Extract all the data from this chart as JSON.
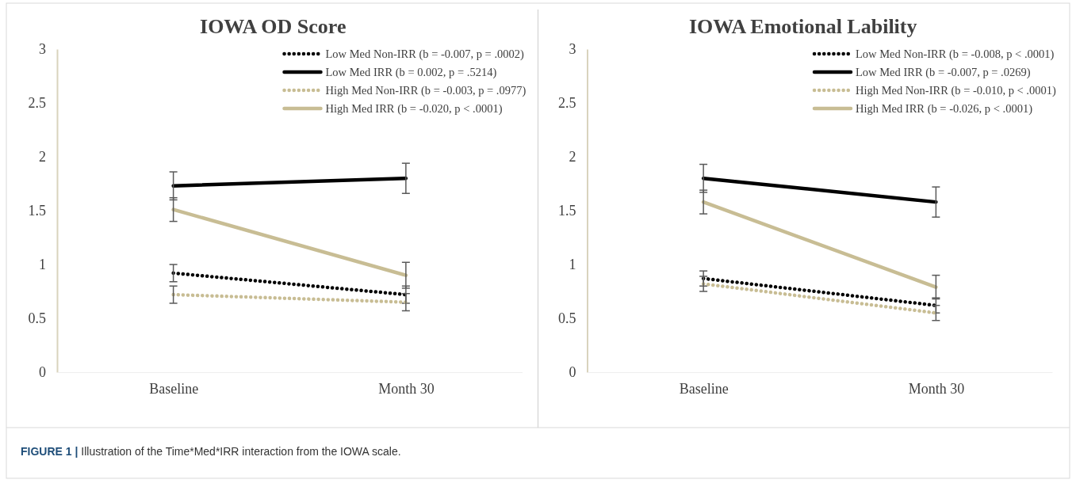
{
  "chart_data": [
    {
      "type": "line",
      "title": "IOWA OD Score",
      "categories": [
        "Baseline",
        "Month 30"
      ],
      "ylim": [
        0,
        3
      ],
      "yticks": [
        0,
        0.5,
        1,
        1.5,
        2,
        2.5,
        3
      ],
      "grid": false,
      "legend": "top right",
      "marker": "none",
      "series": [
        {
          "name": "Low Med Non-IRR (b = -0.007, p = .0002)",
          "color": "#000000",
          "line_style": "dotted",
          "values": [
            0.92,
            0.72
          ],
          "errors": [
            0.08,
            0.08
          ]
        },
        {
          "name": "Low Med IRR (b = 0.002, p = .5214)",
          "color": "#000000",
          "line_style": "solid",
          "values": [
            1.73,
            1.8
          ],
          "errors": [
            0.13,
            0.14
          ]
        },
        {
          "name": "High Med Non-IRR (b = -0.003, p = .0977)",
          "color": "#c8bd94",
          "line_style": "dotted",
          "values": [
            0.72,
            0.65
          ],
          "errors": [
            0.08,
            0.08
          ]
        },
        {
          "name": "High Med IRR (b = -0.020, p < .0001)",
          "color": "#c8bd94",
          "line_style": "solid",
          "values": [
            1.51,
            0.9
          ],
          "errors": [
            0.11,
            0.12
          ]
        }
      ],
      "annotations": [
        "FIGURE 1 | Illustration of the Time*Med*IRR interaction from the IOWA scale."
      ]
    },
    {
      "type": "line",
      "title": "IOWA Emotional Lability",
      "categories": [
        "Baseline",
        "Month 30"
      ],
      "ylim": [
        0,
        3
      ],
      "yticks": [
        0,
        0.5,
        1,
        1.5,
        2,
        2.5,
        3
      ],
      "grid": false,
      "legend": "top right",
      "marker": "none",
      "series": [
        {
          "name": "Low Med Non-IRR (b = -0.008, p < .0001)",
          "color": "#000000",
          "line_style": "dotted",
          "values": [
            0.87,
            0.62
          ],
          "errors": [
            0.07,
            0.07
          ]
        },
        {
          "name": "Low Med IRR (b = -0.007, p = .0269)",
          "color": "#000000",
          "line_style": "solid",
          "values": [
            1.8,
            1.58
          ],
          "errors": [
            0.13,
            0.14
          ]
        },
        {
          "name": "High Med Non-IRR (b = -0.010, p < .0001)",
          "color": "#c8bd94",
          "line_style": "dotted",
          "values": [
            0.82,
            0.55
          ],
          "errors": [
            0.07,
            0.07
          ]
        },
        {
          "name": "High Med IRR (b = -0.026, p < .0001)",
          "color": "#c8bd94",
          "line_style": "solid",
          "values": [
            1.58,
            0.79
          ],
          "errors": [
            0.11,
            0.11
          ]
        }
      ]
    }
  ]
}
